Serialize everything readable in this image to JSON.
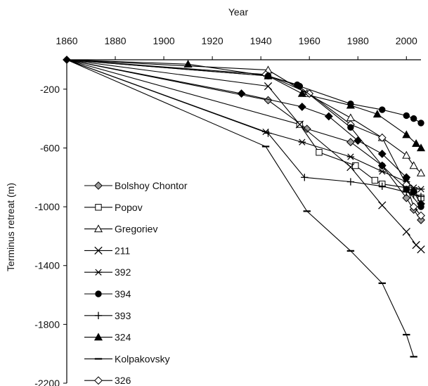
{
  "chart_data": {
    "type": "line",
    "xlabel": "Year",
    "ylabel": "Terminus retreat (m)",
    "xlim": [
      1860,
      2006
    ],
    "ylim": [
      -2200,
      0
    ],
    "x_ticks": [
      1860,
      1880,
      1900,
      1920,
      1940,
      1960,
      1980,
      2000
    ],
    "y_ticks": [
      -200,
      -600,
      -1000,
      -1400,
      -1800,
      -2200
    ],
    "x_axis_position": "top",
    "grid": false,
    "legend_position": "bottom-left",
    "series": [
      {
        "name": "Bolshoy Chontor",
        "marker": "diamond-gray",
        "points": [
          [
            1860,
            0
          ],
          [
            1943,
            -275
          ],
          [
            1959,
            -470
          ],
          [
            1977,
            -560
          ],
          [
            1990,
            -720
          ],
          [
            2000,
            -940
          ],
          [
            2003,
            -1020
          ],
          [
            2006,
            -1090
          ]
        ]
      },
      {
        "name": "Popov",
        "marker": "square-open",
        "points": [
          [
            1860,
            0
          ],
          [
            1956,
            -440
          ],
          [
            1964,
            -630
          ],
          [
            1979,
            -720
          ],
          [
            1987,
            -820
          ],
          [
            1990,
            -845
          ],
          [
            2000,
            -870
          ],
          [
            2003,
            -900
          ],
          [
            2006,
            -940
          ]
        ]
      },
      {
        "name": "Gregoriev",
        "marker": "triangle-open",
        "points": [
          [
            1860,
            0
          ],
          [
            1943,
            -70
          ],
          [
            1959,
            -230
          ],
          [
            1977,
            -395
          ],
          [
            1990,
            -530
          ],
          [
            2000,
            -650
          ],
          [
            2003,
            -720
          ],
          [
            2006,
            -770
          ]
        ]
      },
      {
        "name": "211",
        "marker": "x",
        "points": [
          [
            1860,
            0
          ],
          [
            1943,
            -180
          ],
          [
            1956,
            -440
          ],
          [
            1977,
            -730
          ],
          [
            1990,
            -990
          ],
          [
            2000,
            -1170
          ],
          [
            2004,
            -1260
          ],
          [
            2006,
            -1290
          ]
        ]
      },
      {
        "name": "392",
        "marker": "asterisk",
        "points": [
          [
            1860,
            0
          ],
          [
            1942,
            -490
          ],
          [
            1957,
            -560
          ],
          [
            1977,
            -660
          ],
          [
            1990,
            -760
          ],
          [
            2000,
            -830
          ],
          [
            2003,
            -870
          ],
          [
            2006,
            -880
          ]
        ]
      },
      {
        "name": "394",
        "marker": "circle-filled",
        "points": [
          [
            1860,
            0
          ],
          [
            1943,
            -110
          ],
          [
            1956,
            -180
          ],
          [
            1977,
            -300
          ],
          [
            1990,
            -340
          ],
          [
            2000,
            -380
          ],
          [
            2003,
            -400
          ],
          [
            2006,
            -430
          ]
        ]
      },
      {
        "name": "393",
        "marker": "plus",
        "points": [
          [
            1860,
            0
          ],
          [
            1943,
            -500
          ],
          [
            1958,
            -800
          ],
          [
            1977,
            -830
          ],
          [
            1990,
            -860
          ],
          [
            2000,
            -900
          ],
          [
            2003,
            -920
          ],
          [
            2006,
            -930
          ]
        ]
      },
      {
        "name": "324",
        "marker": "triangle-filled",
        "points": [
          [
            1860,
            0
          ],
          [
            1910,
            -30
          ],
          [
            1943,
            -110
          ],
          [
            1957,
            -230
          ],
          [
            1977,
            -310
          ],
          [
            1988,
            -370
          ],
          [
            2000,
            -510
          ],
          [
            2004,
            -570
          ],
          [
            2006,
            -600
          ]
        ]
      },
      {
        "name": "Kolpakovsky",
        "marker": "dash",
        "points": [
          [
            1860,
            0
          ],
          [
            1942,
            -590
          ],
          [
            1959,
            -1030
          ],
          [
            1977,
            -1300
          ],
          [
            1990,
            -1520
          ],
          [
            2000,
            -1870
          ],
          [
            2003,
            -2020
          ]
        ]
      },
      {
        "name": "326",
        "marker": "diamond-open",
        "points": [
          [
            1860,
            0
          ],
          [
            1942,
            -100
          ],
          [
            1960,
            -230
          ],
          [
            1977,
            -440
          ],
          [
            1990,
            -530
          ],
          [
            2000,
            -850
          ],
          [
            2003,
            -1000
          ],
          [
            2006,
            -1060
          ]
        ]
      },
      {
        "name": "",
        "marker": "circle-filled",
        "legend": false,
        "points": [
          [
            1860,
            0
          ],
          [
            1943,
            -110
          ],
          [
            1955,
            -170
          ],
          [
            1977,
            -460
          ],
          [
            1990,
            -720
          ],
          [
            2000,
            -880
          ],
          [
            2006,
            -1000
          ]
        ]
      },
      {
        "name": "",
        "marker": "diamond-filled",
        "legend": false,
        "points": [
          [
            1860,
            0
          ],
          [
            1932,
            -230
          ],
          [
            1957,
            -320
          ],
          [
            1968,
            -385
          ],
          [
            1980,
            -550
          ],
          [
            1990,
            -640
          ],
          [
            2000,
            -800
          ],
          [
            2003,
            -900
          ],
          [
            2006,
            -980
          ]
        ]
      }
    ]
  }
}
